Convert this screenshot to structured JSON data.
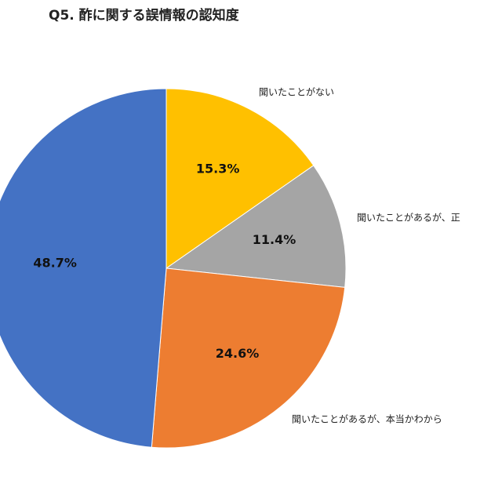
{
  "chart_data": {
    "type": "pie",
    "title": "Q5. 酢に関する誤情報の認知度",
    "categories": [
      "聞いたことがない",
      "聞いたことがあるが、正",
      "聞いたことがあるが、本当かわから",
      null
    ],
    "values": [
      15.3,
      11.4,
      24.6,
      48.7
    ],
    "value_labels": [
      "15.3%",
      "11.4%",
      "24.6%",
      "48.7%"
    ],
    "colors": [
      "#ffc000",
      "#a5a5a5",
      "#ed7d31",
      "#4472c4"
    ]
  }
}
